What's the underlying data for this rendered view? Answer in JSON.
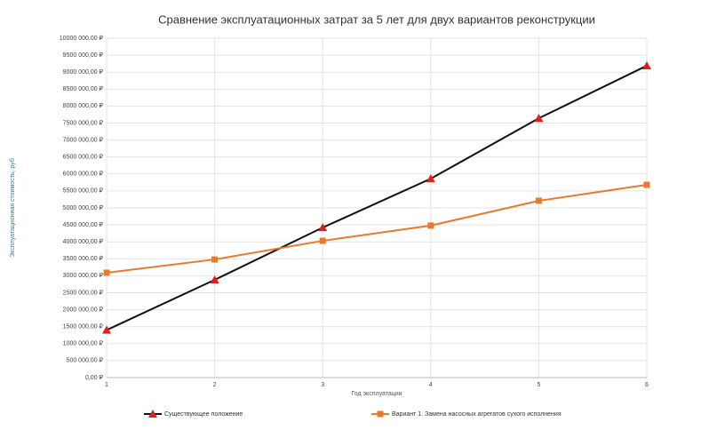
{
  "chart_data": {
    "type": "line",
    "title": "Сравнение эксплуатационных затрат за 5 лет для двух вариантов реконструкции",
    "x_label": "Год эксплуатации",
    "y_label": "Эксплуатационная стоимость, руб",
    "x": [
      1,
      2,
      3,
      4,
      5,
      6
    ],
    "xlim": [
      1,
      6
    ],
    "xticks": [
      1,
      2,
      3,
      4,
      5,
      6
    ],
    "ylim": [
      0,
      10000000
    ],
    "yticks": [
      {
        "value": 0,
        "label": "0,00 ₽"
      },
      {
        "value": 500000,
        "label": "500 000,00 ₽"
      },
      {
        "value": 1000000,
        "label": "1000 000,00 ₽"
      },
      {
        "value": 1500000,
        "label": "1500 000,00 ₽"
      },
      {
        "value": 2000000,
        "label": "2000 000,00 ₽"
      },
      {
        "value": 2500000,
        "label": "2500 000,00 ₽"
      },
      {
        "value": 3000000,
        "label": "3000 000,00 ₽"
      },
      {
        "value": 3500000,
        "label": "3500 000,00 ₽"
      },
      {
        "value": 4000000,
        "label": "4000 000,00 ₽"
      },
      {
        "value": 4500000,
        "label": "4500 000,00 ₽"
      },
      {
        "value": 5000000,
        "label": "5000 000,00 ₽"
      },
      {
        "value": 5500000,
        "label": "5500 000,00 ₽"
      },
      {
        "value": 6000000,
        "label": "6000 000,00 ₽"
      },
      {
        "value": 6500000,
        "label": "6500 000,00 ₽"
      },
      {
        "value": 7000000,
        "label": "7000 000,00 ₽"
      },
      {
        "value": 7500000,
        "label": "7500 000,00 ₽"
      },
      {
        "value": 8000000,
        "label": "8000 000,00 ₽"
      },
      {
        "value": 8500000,
        "label": "8500 000,00 ₽"
      },
      {
        "value": 9000000,
        "label": "9000 000,00 ₽"
      },
      {
        "value": 9500000,
        "label": "9500 000,00 ₽"
      },
      {
        "value": 10000000,
        "label": "10000 000,00 ₽"
      }
    ],
    "grid": true,
    "legend_position": "bottom",
    "series": [
      {
        "name": "Существующее положение",
        "color": "#111111",
        "marker": "triangle",
        "marker_color": "#e0201c",
        "values": [
          1400000,
          2880000,
          4420000,
          5860000,
          7640000,
          9190000
        ]
      },
      {
        "name": "Вариант 1. Замена насосных агрегатов сухого исполнения",
        "color": "#e87a2a",
        "marker": "square",
        "marker_color": "#e87a2a",
        "values": [
          3090000,
          3480000,
          4030000,
          4480000,
          5210000,
          5680000
        ]
      }
    ]
  }
}
